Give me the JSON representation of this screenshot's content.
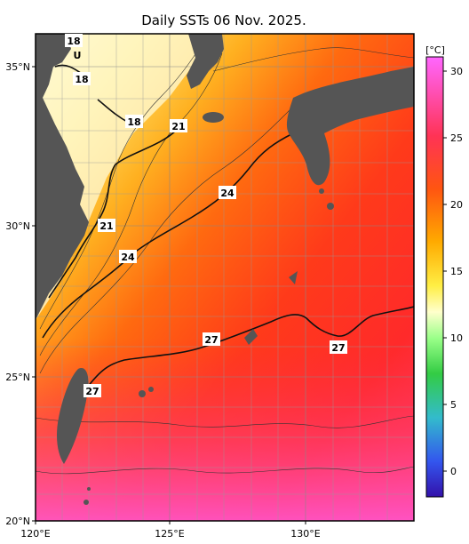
{
  "title": "Daily SSTs 06 Nov. 2025.",
  "colorbar": {
    "unit": "[°C]",
    "ticks": [
      "30",
      "25",
      "20",
      "15",
      "10",
      "5",
      "0"
    ],
    "stops": [
      "#ff66ff",
      "#ff3333",
      "#ff9900",
      "#ffee33",
      "#ffffbb",
      "#99ff88",
      "#33cc33",
      "#33cccc",
      "#3366ff",
      "#3311aa"
    ]
  },
  "axes": {
    "x_ticks": [
      "120°E",
      "125°E",
      "130°E"
    ],
    "y_ticks": [
      "35°N",
      "30°N",
      "25°N",
      "20°N"
    ]
  },
  "colors": {
    "land": "#555555",
    "grid": "#888888"
  },
  "contour_labels": [
    {
      "text": "18"
    },
    {
      "text": "18"
    },
    {
      "text": "18"
    },
    {
      "text": "21"
    },
    {
      "text": "21"
    },
    {
      "text": "24"
    },
    {
      "text": "24"
    },
    {
      "text": "27"
    },
    {
      "text": "27"
    },
    {
      "text": "27"
    }
  ],
  "extra_marks": {
    "u_mark": "U"
  }
}
